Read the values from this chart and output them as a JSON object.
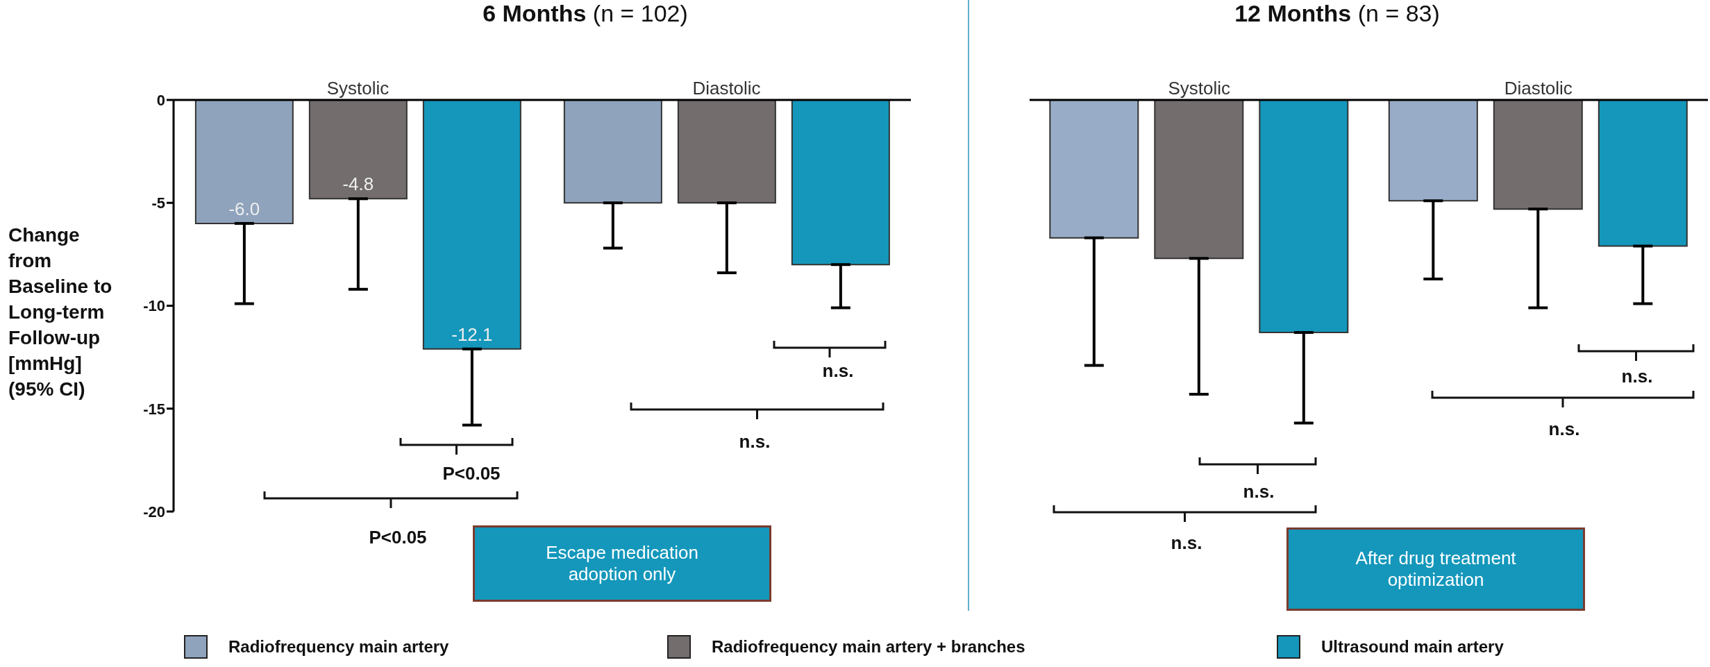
{
  "chart_data": [
    {
      "type": "bar",
      "title": "6 Months (n = 102)",
      "ylabel": "Change from Baseline to Long-term Follow-up [mmHg] (95% CI)",
      "categories": [
        "Systolic",
        "Diastolic"
      ],
      "series": [
        {
          "name": "Radiofrequency main artery",
          "color": "#8fa3bd",
          "values": [
            -6.0,
            -5.0
          ],
          "errors": [
            [
              -9.9,
              -6.0
            ],
            [
              -7.2,
              -5.0
            ]
          ],
          "value_labels": [
            "-6.0",
            null
          ]
        },
        {
          "name": "Radiofrequency main artery + branches",
          "color": "#736d6d",
          "values": [
            -4.8,
            -5.0
          ],
          "errors": [
            [
              -9.2,
              -4.8
            ],
            [
              -8.4,
              -5.0
            ]
          ],
          "value_labels": [
            "-4.8",
            null
          ]
        },
        {
          "name": "Ultrasound main artery",
          "color": "#1497bb",
          "values": [
            -12.1,
            -8.0
          ],
          "errors": [
            [
              -15.8,
              -12.1
            ],
            [
              -10.1,
              -8.0
            ]
          ],
          "value_labels": [
            "-12.1",
            null
          ]
        }
      ],
      "ylim": [
        -20,
        0
      ],
      "yticks": [
        0,
        -5,
        -10,
        -15,
        -20
      ],
      "grid": false,
      "legend": "bottom",
      "annotations": [
        "P<0.05",
        "P<0.05",
        "n.s.",
        "n.s.",
        "Escape medication adoption only"
      ]
    },
    {
      "type": "bar",
      "title": "12 Months (n = 83)",
      "categories": [
        "Systolic",
        "Diastolic"
      ],
      "series": [
        {
          "color": "#98acc7",
          "values": [
            -6.7,
            -4.9
          ],
          "errors": [
            [
              -12.9,
              -6.7
            ],
            [
              -8.7,
              -4.9
            ]
          ]
        },
        {
          "color": "#736d6d",
          "values": [
            -7.7,
            -5.3
          ],
          "errors": [
            [
              -14.3,
              -7.7
            ],
            [
              -10.1,
              -5.3
            ]
          ]
        },
        {
          "color": "#1497bb",
          "values": [
            -11.3,
            -7.1
          ],
          "errors": [
            [
              -15.7,
              -11.3
            ],
            [
              -9.9,
              -7.1
            ]
          ]
        }
      ],
      "ylim": [
        -20,
        0
      ],
      "yticks": [
        0,
        -5,
        -10,
        -15,
        -20
      ],
      "tick_labels": "x",
      "grid": false,
      "annotations": [
        "n.s.",
        "n.s.",
        "n.s.",
        "n.s.",
        "After drug treatment optimization"
      ]
    }
  ]
}
